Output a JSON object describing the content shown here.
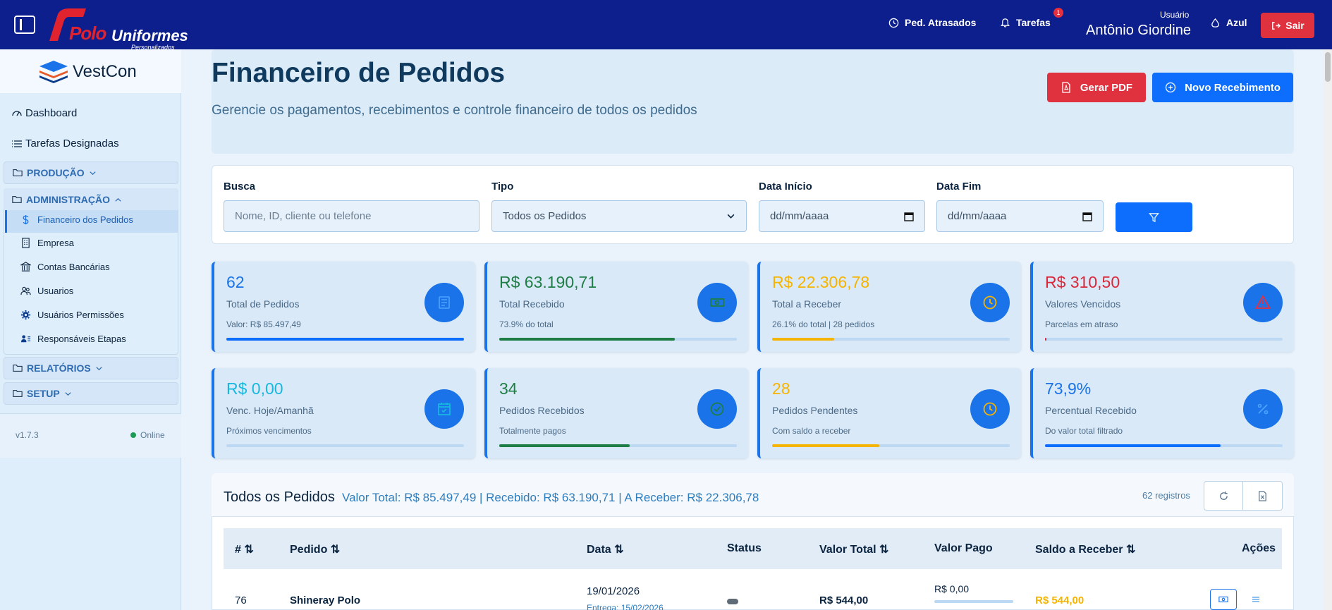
{
  "topbar": {
    "logo_main": "Polo",
    "logo_second": "Uniformes",
    "logo_tagline": "Personalizados",
    "delayed_orders": "Ped. Atrasados",
    "tasks": "Tarefas",
    "tasks_badge": "1",
    "user_label": "Usuário",
    "user_name": "Antônio Giordine",
    "theme": "Azul",
    "logout": "Sair"
  },
  "sidebar": {
    "brand": "VestCon",
    "dashboard": "Dashboard",
    "tasks": "Tarefas Designadas",
    "sections": {
      "production": "PRODUÇÃO",
      "administration": "ADMINISTRAÇÃO",
      "reports": "RELATÓRIOS",
      "setup": "SETUP"
    },
    "admin_items": [
      {
        "label": "Financeiro dos Pedidos",
        "icon": "dollar-icon",
        "active": true
      },
      {
        "label": "Empresa",
        "icon": "building-icon"
      },
      {
        "label": "Contas Bancárias",
        "icon": "bank-icon"
      },
      {
        "label": "Usuarios",
        "icon": "users-icon"
      },
      {
        "label": "Usuários Permissões",
        "icon": "gear-icon"
      },
      {
        "label": "Responsáveis Etapas",
        "icon": "person-list-icon"
      }
    ],
    "version": "v1.7.3",
    "status": "Online"
  },
  "header": {
    "title": "Financeiro de Pedidos",
    "subtitle": "Gerencie os pagamentos, recebimentos e controle financeiro de todos os pedidos",
    "pdf_button": "Gerar PDF",
    "new_button": "Novo Recebimento"
  },
  "filters": {
    "search_label": "Busca",
    "search_placeholder": "Nome, ID, cliente ou telefone",
    "type_label": "Tipo",
    "type_value": "Todos os Pedidos",
    "start_label": "Data Início",
    "start_value": "dd/mm/aaaa",
    "end_label": "Data Fim",
    "end_value": "dd/mm/aaaa"
  },
  "stats": [
    {
      "value": "62",
      "label": "Total de Pedidos",
      "sub": "Valor: R$ 85.497,49",
      "color": "#1a73e8",
      "bar_color": "#0d6efd",
      "progress": 1.0,
      "icon": "list-icon"
    },
    {
      "value": "R$ 63.190,71",
      "label": "Total Recebido",
      "sub": "73.9% do total",
      "color": "#1e7e45",
      "bar_color": "#1e7e45",
      "progress": 0.739,
      "icon": "cash-icon"
    },
    {
      "value": "R$ 22.306,78",
      "label": "Total a Receber",
      "sub": "26.1% do total | 28 pedidos",
      "color": "#f5b400",
      "bar_color": "#f5b400",
      "progress": 0.261,
      "icon": "clock-icon"
    },
    {
      "value": "R$ 310,50",
      "label": "Valores Vencidos",
      "sub": "Parcelas em atraso",
      "color": "#d9283a",
      "bar_color": "#d9283a",
      "progress": 0.005,
      "icon": "warning-icon"
    },
    {
      "value": "R$ 0,00",
      "label": "Venc. Hoje/Amanhã",
      "sub": "Próximos vencimentos",
      "color": "#17b8e0",
      "bar_color": "#17b8e0",
      "progress": 0.0,
      "icon": "calendar-check-icon"
    },
    {
      "value": "34",
      "label": "Pedidos Recebidos",
      "sub": "Totalmente pagos",
      "color": "#1e7e45",
      "bar_color": "#1e7e45",
      "progress": 0.548,
      "icon": "check-circle-icon"
    },
    {
      "value": "28",
      "label": "Pedidos Pendentes",
      "sub": "Com saldo a receber",
      "color": "#f5b400",
      "bar_color": "#f5b400",
      "progress": 0.452,
      "icon": "clock-icon"
    },
    {
      "value": "73,9%",
      "label": "Percentual Recebido",
      "sub": "Do valor total filtrado",
      "color": "#1a73e8",
      "bar_color": "#0d6efd",
      "progress": 0.739,
      "icon": "percent-icon"
    }
  ],
  "table": {
    "title": "Todos os Pedidos",
    "summary": "Valor Total: R$ 85.497,49 | Recebido: R$ 63.190,71 | A Receber: R$ 22.306,78",
    "count": "62 registros",
    "columns": [
      "#",
      "Pedido",
      "Data",
      "Status",
      "Valor Total",
      "Valor Pago",
      "Saldo a Receber",
      "Ações"
    ],
    "rows": [
      {
        "id": "76",
        "pedido": "Shineray Polo",
        "data": "19/01/2026",
        "data_sub": "Entrega: 15/02/2026",
        "valor_total": "R$ 544,00",
        "valor_pago": "R$ 0,00",
        "saldo": "R$ 544,00"
      }
    ]
  }
}
